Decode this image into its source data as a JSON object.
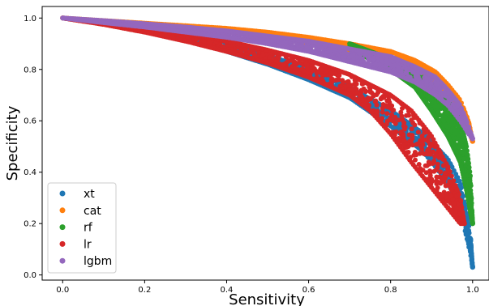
{
  "chart_data": {
    "type": "scatter",
    "title": "",
    "xlabel": "Sensitivity",
    "ylabel": "Specificity",
    "xlim": [
      -0.05,
      1.04
    ],
    "ylim": [
      -0.02,
      1.045
    ],
    "x_ticks": [
      0.0,
      0.2,
      0.4,
      0.6,
      0.8,
      1.0
    ],
    "x_tick_labels": [
      "0.0",
      "0.2",
      "0.4",
      "0.6",
      "0.8",
      "1.0"
    ],
    "y_ticks": [
      0.0,
      0.2,
      0.4,
      0.6,
      0.8,
      1.0
    ],
    "y_tick_labels": [
      "0.0",
      "0.2",
      "0.4",
      "0.6",
      "0.8",
      "1.0"
    ],
    "grid": false,
    "legend_position": "lower-left",
    "series": [
      {
        "name": "xt",
        "color": "#1f77b4",
        "upper": [
          [
            0.0,
            1.0
          ],
          [
            0.1,
            0.985
          ],
          [
            0.2,
            0.965
          ],
          [
            0.3,
            0.94
          ],
          [
            0.4,
            0.905
          ],
          [
            0.5,
            0.855
          ],
          [
            0.6,
            0.8
          ],
          [
            0.7,
            0.73
          ],
          [
            0.8,
            0.64
          ],
          [
            0.88,
            0.55
          ],
          [
            0.94,
            0.45
          ],
          [
            0.97,
            0.36
          ],
          [
            0.985,
            0.25
          ],
          [
            0.995,
            0.15
          ],
          [
            1.0,
            0.03
          ]
        ],
        "lower": [
          [
            0.0,
            1.0
          ],
          [
            0.1,
            0.978
          ],
          [
            0.2,
            0.95
          ],
          [
            0.3,
            0.915
          ],
          [
            0.4,
            0.87
          ],
          [
            0.5,
            0.82
          ],
          [
            0.6,
            0.76
          ],
          [
            0.7,
            0.69
          ],
          [
            0.8,
            0.58
          ],
          [
            0.88,
            0.48
          ],
          [
            0.94,
            0.36
          ],
          [
            0.97,
            0.25
          ],
          [
            0.985,
            0.15
          ],
          [
            0.995,
            0.08
          ],
          [
            1.0,
            0.03
          ]
        ]
      },
      {
        "name": "cat",
        "color": "#ff7f0e",
        "upper": [
          [
            0.0,
            1.0
          ],
          [
            0.1,
            0.99
          ],
          [
            0.2,
            0.98
          ],
          [
            0.3,
            0.97
          ],
          [
            0.4,
            0.96
          ],
          [
            0.5,
            0.945
          ],
          [
            0.6,
            0.925
          ],
          [
            0.7,
            0.9
          ],
          [
            0.8,
            0.87
          ],
          [
            0.86,
            0.835
          ],
          [
            0.91,
            0.79
          ],
          [
            0.94,
            0.74
          ],
          [
            0.97,
            0.68
          ],
          [
            0.99,
            0.6
          ],
          [
            1.0,
            0.52
          ]
        ],
        "lower": [
          [
            0.0,
            1.0
          ],
          [
            0.1,
            0.985
          ],
          [
            0.2,
            0.972
          ],
          [
            0.3,
            0.958
          ],
          [
            0.4,
            0.945
          ],
          [
            0.5,
            0.925
          ],
          [
            0.6,
            0.9
          ],
          [
            0.7,
            0.87
          ],
          [
            0.8,
            0.83
          ],
          [
            0.86,
            0.79
          ],
          [
            0.91,
            0.74
          ],
          [
            0.94,
            0.7
          ],
          [
            0.97,
            0.63
          ],
          [
            0.99,
            0.57
          ],
          [
            1.0,
            0.52
          ]
        ]
      },
      {
        "name": "rf",
        "color": "#2ca02c",
        "upper": [
          [
            0.7,
            0.9
          ],
          [
            0.8,
            0.84
          ],
          [
            0.86,
            0.79
          ],
          [
            0.9,
            0.74
          ],
          [
            0.94,
            0.68
          ],
          [
            0.97,
            0.6
          ],
          [
            0.985,
            0.5
          ],
          [
            0.995,
            0.38
          ],
          [
            1.0,
            0.2
          ]
        ],
        "lower": [
          [
            0.7,
            0.88
          ],
          [
            0.8,
            0.8
          ],
          [
            0.86,
            0.73
          ],
          [
            0.9,
            0.64
          ],
          [
            0.94,
            0.54
          ],
          [
            0.97,
            0.44
          ],
          [
            0.985,
            0.33
          ],
          [
            0.995,
            0.24
          ],
          [
            1.0,
            0.2
          ]
        ]
      },
      {
        "name": "lr",
        "color": "#d62728",
        "upper": [
          [
            0.0,
            1.0
          ],
          [
            0.1,
            0.985
          ],
          [
            0.2,
            0.965
          ],
          [
            0.3,
            0.94
          ],
          [
            0.4,
            0.91
          ],
          [
            0.5,
            0.875
          ],
          [
            0.6,
            0.835
          ],
          [
            0.7,
            0.78
          ],
          [
            0.8,
            0.7
          ],
          [
            0.85,
            0.64
          ],
          [
            0.9,
            0.54
          ],
          [
            0.94,
            0.42
          ],
          [
            0.97,
            0.3
          ],
          [
            0.98,
            0.2
          ]
        ],
        "lower": [
          [
            0.0,
            1.0
          ],
          [
            0.1,
            0.975
          ],
          [
            0.2,
            0.945
          ],
          [
            0.3,
            0.91
          ],
          [
            0.4,
            0.87
          ],
          [
            0.5,
            0.825
          ],
          [
            0.6,
            0.77
          ],
          [
            0.7,
            0.7
          ],
          [
            0.75,
            0.64
          ],
          [
            0.8,
            0.55
          ],
          [
            0.85,
            0.44
          ],
          [
            0.9,
            0.34
          ],
          [
            0.94,
            0.26
          ],
          [
            0.97,
            0.2
          ],
          [
            0.98,
            0.2
          ]
        ]
      },
      {
        "name": "lgbm",
        "color": "#9467bd",
        "upper": [
          [
            0.0,
            1.0
          ],
          [
            0.1,
            0.99
          ],
          [
            0.2,
            0.978
          ],
          [
            0.3,
            0.965
          ],
          [
            0.4,
            0.95
          ],
          [
            0.5,
            0.93
          ],
          [
            0.6,
            0.91
          ],
          [
            0.7,
            0.88
          ],
          [
            0.8,
            0.85
          ],
          [
            0.86,
            0.81
          ],
          [
            0.91,
            0.77
          ],
          [
            0.94,
            0.72
          ],
          [
            0.97,
            0.66
          ],
          [
            0.99,
            0.58
          ],
          [
            1.0,
            0.53
          ]
        ],
        "lower": [
          [
            0.0,
            1.0
          ],
          [
            0.1,
            0.982
          ],
          [
            0.2,
            0.965
          ],
          [
            0.3,
            0.945
          ],
          [
            0.4,
            0.925
          ],
          [
            0.5,
            0.9
          ],
          [
            0.6,
            0.87
          ],
          [
            0.7,
            0.83
          ],
          [
            0.8,
            0.79
          ],
          [
            0.86,
            0.75
          ],
          [
            0.91,
            0.7
          ],
          [
            0.94,
            0.66
          ],
          [
            0.97,
            0.6
          ],
          [
            0.99,
            0.55
          ],
          [
            1.0,
            0.53
          ]
        ]
      }
    ]
  }
}
